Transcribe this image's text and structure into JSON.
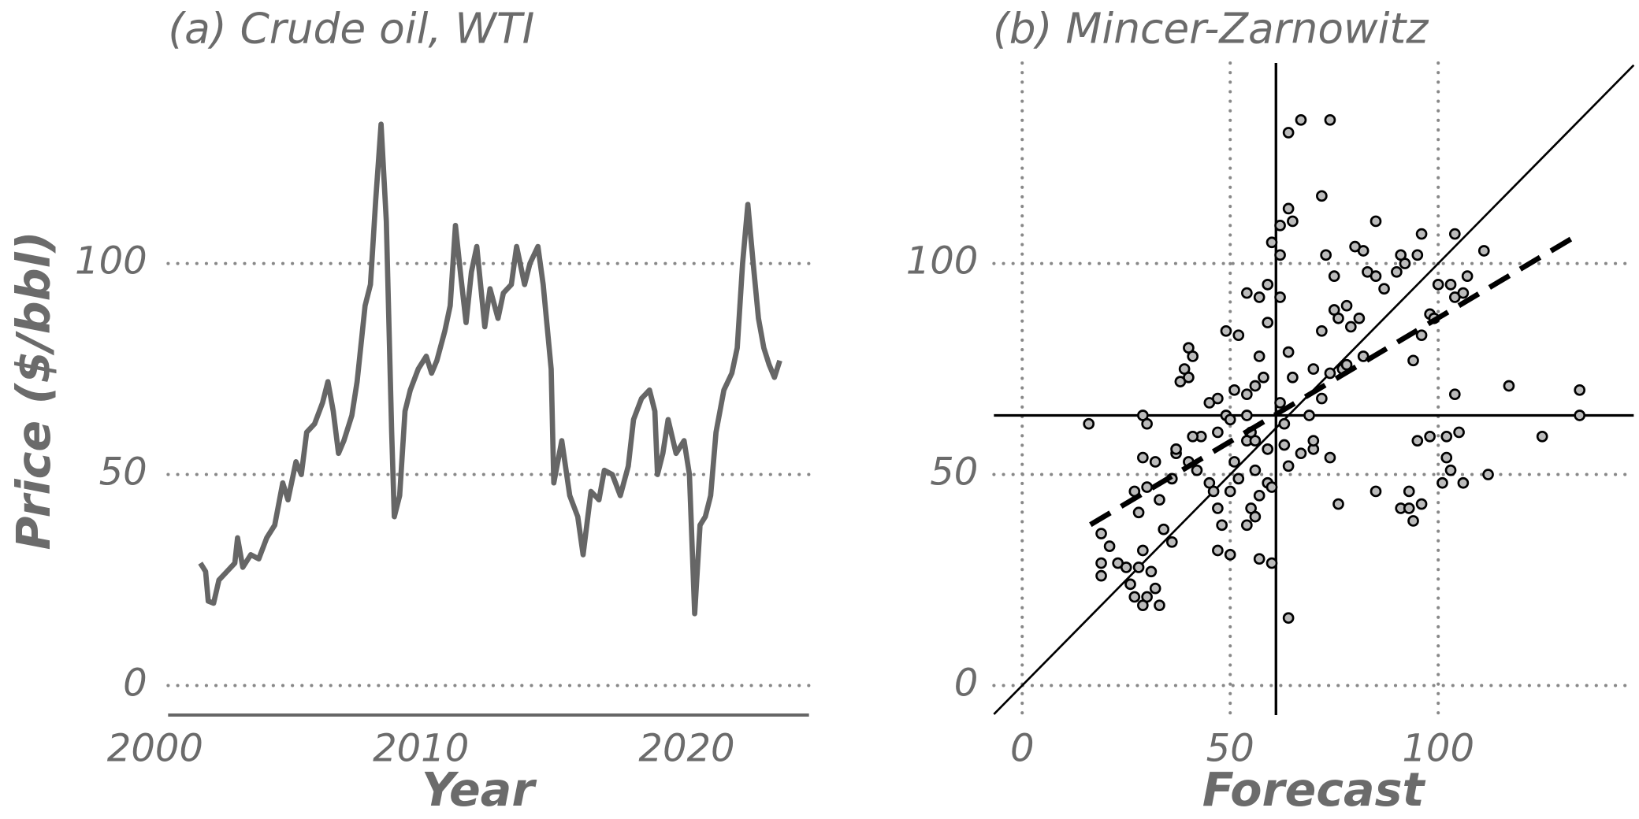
{
  "chart_data": [
    {
      "type": "line",
      "title": "(a) Crude oil, WTI",
      "x_label": "Year",
      "y_label": "Price ($/bbl)",
      "color": "#666666",
      "grid": "y",
      "x_axis_line": true,
      "xlim": [
        1999.5,
        2024.6
      ],
      "xticks": [
        2000,
        2010,
        2020
      ],
      "ylim": [
        -7,
        147.5
      ],
      "yticks": [
        0,
        50,
        100
      ],
      "x": [
        2001.7,
        2001.9,
        2002.0,
        2002.2,
        2002.4,
        2002.7,
        2003.0,
        2003.1,
        2003.3,
        2003.6,
        2003.9,
        2004.2,
        2004.5,
        2004.8,
        2005.0,
        2005.3,
        2005.5,
        2005.7,
        2006.0,
        2006.3,
        2006.5,
        2006.7,
        2006.9,
        2007.1,
        2007.4,
        2007.6,
        2007.9,
        2008.1,
        2008.3,
        2008.5,
        2008.7,
        2008.9,
        2009.0,
        2009.2,
        2009.4,
        2009.6,
        2009.9,
        2010.2,
        2010.4,
        2010.6,
        2010.9,
        2011.1,
        2011.3,
        2011.5,
        2011.7,
        2011.9,
        2012.1,
        2012.4,
        2012.6,
        2012.9,
        2013.1,
        2013.4,
        2013.6,
        2013.9,
        2014.1,
        2014.4,
        2014.6,
        2014.9,
        2015.0,
        2015.3,
        2015.6,
        2015.9,
        2016.1,
        2016.4,
        2016.7,
        2016.9,
        2017.2,
        2017.5,
        2017.8,
        2018.0,
        2018.3,
        2018.6,
        2018.8,
        2018.9,
        2019.1,
        2019.3,
        2019.6,
        2019.9,
        2020.1,
        2020.3,
        2020.5,
        2020.7,
        2020.9,
        2021.1,
        2021.4,
        2021.7,
        2021.9,
        2022.1,
        2022.3,
        2022.5,
        2022.7,
        2022.9,
        2023.1,
        2023.3,
        2023.5
      ],
      "values": [
        29,
        27,
        20,
        19.5,
        25,
        27,
        29,
        35,
        28,
        31,
        30,
        35,
        38,
        48,
        44,
        53,
        50,
        60,
        62,
        67,
        72,
        65,
        55,
        58,
        64,
        72,
        90,
        95,
        115,
        133,
        110,
        60,
        40,
        45,
        65,
        70,
        75,
        78,
        74,
        77,
        84,
        90,
        109,
        97,
        86,
        98,
        104,
        85,
        94,
        87,
        93,
        95,
        104,
        95,
        100,
        104,
        95,
        75,
        48,
        58,
        45,
        40,
        31,
        46,
        44,
        51,
        50,
        45,
        52,
        63,
        68,
        70,
        65,
        50,
        55,
        63,
        55,
        58,
        50,
        17,
        38,
        40,
        45,
        60,
        70,
        74,
        80,
        100,
        114,
        100,
        87,
        80,
        76,
        73,
        77
      ]
    },
    {
      "type": "scatter",
      "title": "(b) Mincer-Zarnowitz",
      "x_label": "Forecast",
      "color": "#bbbbbb",
      "grid": "both",
      "identity_line": true,
      "xlim": [
        -6.8,
        147
      ],
      "xticks": [
        0,
        50,
        100
      ],
      "ylim": [
        -7,
        147.5
      ],
      "yticks": [
        0,
        50,
        100
      ],
      "mean_x": 61,
      "mean_y": 64,
      "fit": {
        "intercept": 28.5,
        "slope": 0.586,
        "xlim": [
          16.4,
          134.3
        ]
      },
      "x": [
        16,
        64,
        67,
        74,
        64,
        72,
        64,
        65,
        62,
        85,
        82,
        80,
        96,
        104,
        111,
        117,
        134,
        134,
        125,
        112,
        94,
        19,
        21,
        19,
        23,
        19,
        25,
        26,
        27,
        29,
        30,
        33,
        32,
        28,
        29,
        31,
        28,
        27,
        30,
        33,
        36,
        29,
        30,
        37,
        36,
        34,
        32,
        29,
        40,
        39,
        41,
        38,
        40,
        45,
        47,
        49,
        47,
        43,
        41,
        37,
        40,
        42,
        45,
        46,
        47,
        48,
        47,
        50,
        50,
        52,
        51,
        54,
        55,
        50,
        51,
        54,
        49,
        52,
        54,
        57,
        59,
        60,
        62,
        62,
        59,
        57,
        58,
        56,
        54,
        56,
        59,
        56,
        59,
        60,
        57,
        55,
        56,
        54,
        57,
        60,
        64,
        65,
        62,
        63,
        63,
        64,
        67,
        70,
        70,
        69,
        72,
        70,
        74,
        77,
        72,
        75,
        78,
        76,
        79,
        81,
        82,
        75,
        73,
        83,
        85,
        87,
        90,
        92,
        91,
        95,
        94,
        98,
        99,
        96,
        100,
        103,
        104,
        107,
        106,
        104,
        76,
        85,
        91,
        93,
        93,
        96,
        95,
        98,
        101,
        102,
        103,
        105,
        106,
        102,
        74,
        78
      ],
      "values": [
        62,
        131,
        134,
        134,
        16,
        116,
        113,
        110,
        109,
        110,
        103,
        104,
        107,
        107,
        103,
        71,
        70,
        64,
        59,
        50,
        39,
        36,
        33,
        29,
        29,
        26,
        28,
        24,
        21,
        19,
        21,
        19,
        23,
        28,
        32,
        27,
        41,
        46,
        47,
        44,
        49,
        64,
        62,
        55,
        34,
        37,
        53,
        54,
        80,
        75,
        78,
        72,
        73,
        67,
        68,
        64,
        60,
        59,
        59,
        56,
        53,
        51,
        48,
        46,
        42,
        38,
        32,
        31,
        46,
        49,
        53,
        58,
        60,
        63,
        70,
        69,
        84,
        83,
        93,
        92,
        95,
        105,
        102,
        92,
        86,
        78,
        73,
        71,
        64,
        58,
        56,
        51,
        48,
        47,
        45,
        42,
        40,
        38,
        30,
        29,
        79,
        73,
        67,
        62,
        57,
        52,
        55,
        56,
        58,
        64,
        68,
        75,
        74,
        75,
        84,
        89,
        90,
        87,
        85,
        87,
        78,
        97,
        102,
        98,
        97,
        94,
        98,
        100,
        102,
        102,
        77,
        88,
        87,
        83,
        95,
        95,
        92,
        97,
        93,
        69,
        43,
        46,
        42,
        42,
        46,
        43,
        58,
        59,
        48,
        54,
        51,
        60,
        48,
        59,
        54,
        76
      ]
    }
  ]
}
